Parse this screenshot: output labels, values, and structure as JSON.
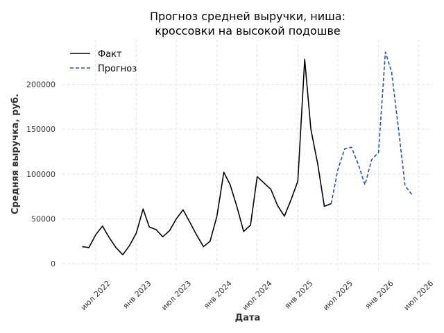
{
  "chart_data": {
    "type": "line",
    "title_lines": [
      "Прогноз средней выручки, ниша:",
      "кроссовки на высокой подошве"
    ],
    "xlabel": "Дата",
    "ylabel": "Средняя выручка, руб.",
    "x_ticks": [
      {
        "date": "2022-07-01",
        "label": "июл 2022"
      },
      {
        "date": "2023-01-01",
        "label": "янв 2023"
      },
      {
        "date": "2023-07-01",
        "label": "июл 2023"
      },
      {
        "date": "2024-01-01",
        "label": "янв 2024"
      },
      {
        "date": "2024-07-01",
        "label": "июл 2024"
      },
      {
        "date": "2025-01-01",
        "label": "янв 2025"
      },
      {
        "date": "2025-07-01",
        "label": "июл 2025"
      },
      {
        "date": "2026-01-01",
        "label": "янв 2026"
      },
      {
        "date": "2026-07-01",
        "label": "июл 2026"
      }
    ],
    "y_ticks": [
      0,
      50000,
      100000,
      150000,
      200000
    ],
    "xlim": [
      "2022-02-01",
      "2026-09-01"
    ],
    "ylim": [
      -10000,
      250000
    ],
    "grid": true,
    "legend_position": "top-left",
    "series": [
      {
        "name": "Факт",
        "color": "#000000",
        "style": "solid",
        "points": [
          [
            "2022-05-01",
            19000
          ],
          [
            "2022-06-01",
            18000
          ],
          [
            "2022-07-01",
            32000
          ],
          [
            "2022-08-01",
            42000
          ],
          [
            "2022-09-01",
            29000
          ],
          [
            "2022-10-01",
            18000
          ],
          [
            "2022-11-01",
            10000
          ],
          [
            "2022-12-01",
            20000
          ],
          [
            "2023-01-01",
            34000
          ],
          [
            "2023-02-01",
            61000
          ],
          [
            "2023-03-01",
            41000
          ],
          [
            "2023-04-01",
            38000
          ],
          [
            "2023-05-01",
            30000
          ],
          [
            "2023-06-01",
            37000
          ],
          [
            "2023-07-01",
            50000
          ],
          [
            "2023-08-01",
            60000
          ],
          [
            "2023-09-01",
            46000
          ],
          [
            "2023-10-01",
            32000
          ],
          [
            "2023-11-01",
            19000
          ],
          [
            "2023-12-01",
            25000
          ],
          [
            "2024-01-01",
            53000
          ],
          [
            "2024-02-01",
            102000
          ],
          [
            "2024-03-01",
            88000
          ],
          [
            "2024-04-01",
            63000
          ],
          [
            "2024-05-01",
            36000
          ],
          [
            "2024-06-01",
            43000
          ],
          [
            "2024-07-01",
            97000
          ],
          [
            "2024-08-01",
            90000
          ],
          [
            "2024-09-01",
            83000
          ],
          [
            "2024-10-01",
            65000
          ],
          [
            "2024-11-01",
            53000
          ],
          [
            "2024-12-01",
            71000
          ],
          [
            "2025-01-01",
            92000
          ],
          [
            "2025-02-01",
            228000
          ],
          [
            "2025-03-01",
            150000
          ],
          [
            "2025-04-01",
            111000
          ],
          [
            "2025-05-01",
            64000
          ],
          [
            "2025-06-01",
            67000
          ]
        ]
      },
      {
        "name": "Прогноз",
        "color": "#1f4fd1",
        "style": "dashed",
        "points": [
          [
            "2025-06-01",
            67000
          ],
          [
            "2025-07-01",
            105000
          ],
          [
            "2025-08-01",
            128000
          ],
          [
            "2025-09-01",
            130000
          ],
          [
            "2025-10-01",
            111000
          ],
          [
            "2025-11-01",
            88000
          ],
          [
            "2025-12-01",
            116000
          ],
          [
            "2026-01-01",
            124000
          ],
          [
            "2026-02-01",
            236000
          ],
          [
            "2026-03-01",
            214000
          ],
          [
            "2026-04-01",
            151000
          ],
          [
            "2026-05-01",
            87000
          ],
          [
            "2026-06-01",
            77000
          ]
        ]
      }
    ]
  }
}
